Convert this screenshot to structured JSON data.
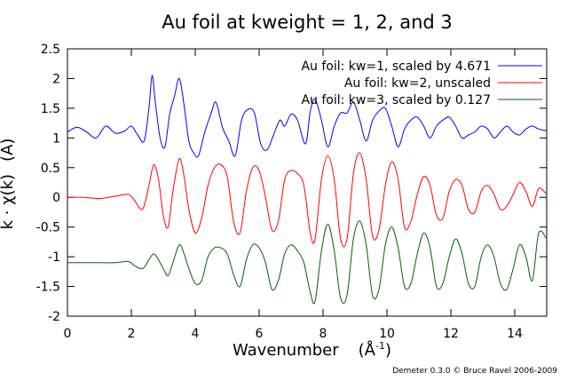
{
  "chart_data": {
    "type": "line",
    "title": "Au foil at kweight = 1, 2, and 3",
    "xlabel": "Wavenumber",
    "xunit_base": "(Å",
    "xunit_exp": "-1",
    "xunit_close": ")",
    "ylabel": "k · χ(k)",
    "yunit": "(A)",
    "xlim": [
      0,
      15
    ],
    "ylim": [
      -2,
      2.5
    ],
    "xticks": [
      0,
      2,
      4,
      6,
      8,
      10,
      12,
      14
    ],
    "yticks": [
      -2,
      -1.5,
      -1,
      -0.5,
      0,
      0.5,
      1,
      1.5,
      2,
      2.5
    ],
    "xtick_labels": [
      "0",
      "2",
      "4",
      "6",
      "8",
      "10",
      "12",
      "14"
    ],
    "ytick_labels": [
      "-2",
      "-1.5",
      "-1",
      "-0.5",
      "0",
      "0.5",
      "1",
      "1.5",
      "2",
      "2.5"
    ],
    "legend_position": "top-right",
    "grid": false,
    "series": [
      {
        "name": "Au foil: kw=1, scaled by 4.671",
        "color": "#0000ff",
        "x": [
          0,
          0.3,
          0.6,
          0.9,
          1.2,
          1.5,
          1.8,
          2.0,
          2.2,
          2.4,
          2.55,
          2.65,
          2.75,
          2.9,
          3.05,
          3.2,
          3.35,
          3.5,
          3.65,
          3.8,
          3.95,
          4.1,
          4.3,
          4.5,
          4.65,
          4.85,
          5.05,
          5.25,
          5.45,
          5.65,
          5.85,
          6.05,
          6.25,
          6.45,
          6.65,
          6.8,
          7.0,
          7.2,
          7.45,
          7.6,
          7.75,
          7.95,
          8.15,
          8.35,
          8.55,
          8.75,
          8.95,
          9.15,
          9.35,
          9.55,
          9.75,
          9.95,
          10.15,
          10.35,
          10.55,
          10.75,
          10.95,
          11.15,
          11.35,
          11.55,
          11.75,
          11.95,
          12.15,
          12.35,
          12.55,
          12.75,
          12.95,
          13.15,
          13.35,
          13.55,
          13.75,
          13.95,
          14.15,
          14.35,
          14.55,
          14.75,
          15.0
        ],
        "y": [
          1.1,
          1.18,
          1.1,
          1.0,
          1.2,
          1.08,
          1.12,
          1.2,
          1.05,
          0.95,
          1.5,
          2.05,
          1.6,
          1.0,
          0.85,
          1.4,
          1.7,
          2.0,
          1.55,
          0.95,
          0.75,
          0.7,
          1.1,
          1.42,
          1.6,
          1.18,
          0.95,
          0.7,
          1.3,
          1.48,
          1.42,
          0.9,
          0.8,
          1.05,
          1.3,
          1.2,
          1.4,
          1.3,
          0.9,
          1.45,
          1.65,
          1.3,
          0.85,
          1.2,
          1.42,
          1.42,
          1.6,
          1.3,
          0.95,
          1.3,
          1.45,
          1.5,
          1.2,
          0.85,
          1.15,
          1.3,
          1.35,
          1.2,
          1.0,
          1.2,
          1.3,
          1.35,
          1.2,
          1.0,
          1.05,
          1.1,
          1.2,
          1.15,
          1.0,
          1.1,
          1.2,
          1.1,
          1.05,
          1.15,
          1.2,
          1.15,
          1.12
        ]
      },
      {
        "name": "Au foil: kw=2, unscaled",
        "color": "#ff0000",
        "x": [
          0,
          0.5,
          1.0,
          1.5,
          1.9,
          2.1,
          2.35,
          2.55,
          2.7,
          2.85,
          3.0,
          3.15,
          3.3,
          3.5,
          3.65,
          3.8,
          4.0,
          4.2,
          4.4,
          4.6,
          4.8,
          5.0,
          5.2,
          5.4,
          5.6,
          5.8,
          6.0,
          6.2,
          6.4,
          6.6,
          6.8,
          7.0,
          7.2,
          7.4,
          7.6,
          7.75,
          7.95,
          8.15,
          8.35,
          8.55,
          8.75,
          8.95,
          9.15,
          9.35,
          9.55,
          9.75,
          9.95,
          10.15,
          10.35,
          10.55,
          10.75,
          10.95,
          11.15,
          11.35,
          11.55,
          11.75,
          11.95,
          12.15,
          12.35,
          12.55,
          12.75,
          12.95,
          13.15,
          13.35,
          13.55,
          13.75,
          13.95,
          14.15,
          14.35,
          14.55,
          14.75,
          15.0
        ],
        "y": [
          0,
          0,
          -0.02,
          0.02,
          0.05,
          -0.05,
          -0.2,
          0.2,
          0.55,
          0.3,
          -0.3,
          -0.5,
          0.1,
          0.65,
          0.35,
          -0.2,
          -0.6,
          -0.35,
          0.2,
          0.5,
          0.55,
          0.35,
          -0.4,
          -0.6,
          0.1,
          0.5,
          0.45,
          0.0,
          -0.55,
          -0.4,
          0.3,
          0.45,
          0.4,
          0.2,
          -0.6,
          -0.7,
          0.3,
          0.7,
          0.3,
          -0.7,
          -0.7,
          0.4,
          0.75,
          0.3,
          -0.65,
          -0.55,
          0.2,
          0.6,
          0.3,
          -0.5,
          -0.4,
          0.05,
          0.35,
          0.2,
          -0.3,
          -0.35,
          0.1,
          0.3,
          0.2,
          -0.2,
          -0.25,
          0.1,
          0.2,
          0.05,
          -0.2,
          -0.15,
          0.05,
          0.25,
          0.1,
          -0.15,
          0.15,
          0.05
        ]
      },
      {
        "name": "Au foil: kw=3, scaled by 0.127",
        "color": "#006400",
        "x": [
          0,
          0.5,
          1.0,
          1.5,
          1.9,
          2.1,
          2.35,
          2.55,
          2.7,
          2.85,
          3.0,
          3.15,
          3.3,
          3.5,
          3.65,
          3.8,
          4.0,
          4.2,
          4.4,
          4.6,
          4.8,
          5.0,
          5.2,
          5.4,
          5.6,
          5.8,
          6.0,
          6.2,
          6.4,
          6.6,
          6.8,
          7.0,
          7.2,
          7.4,
          7.6,
          7.75,
          7.95,
          8.15,
          8.35,
          8.55,
          8.75,
          8.95,
          9.15,
          9.35,
          9.55,
          9.75,
          9.95,
          10.15,
          10.35,
          10.55,
          10.75,
          10.95,
          11.15,
          11.35,
          11.55,
          11.75,
          11.95,
          12.15,
          12.35,
          12.55,
          12.75,
          12.95,
          13.15,
          13.35,
          13.55,
          13.75,
          13.95,
          14.15,
          14.35,
          14.55,
          14.75,
          15.0
        ],
        "y": [
          -1.1,
          -1.1,
          -1.1,
          -1.1,
          -1.08,
          -1.15,
          -1.2,
          -1.05,
          -0.95,
          -1.05,
          -1.2,
          -1.32,
          -1.1,
          -0.8,
          -0.95,
          -1.2,
          -1.45,
          -1.4,
          -1.0,
          -0.85,
          -0.85,
          -0.95,
          -1.3,
          -1.5,
          -1.05,
          -0.8,
          -0.85,
          -1.1,
          -1.55,
          -1.4,
          -0.95,
          -0.8,
          -0.9,
          -1.1,
          -1.6,
          -1.75,
          -0.9,
          -0.45,
          -0.9,
          -1.7,
          -1.65,
          -0.7,
          -0.4,
          -0.8,
          -1.65,
          -1.55,
          -0.8,
          -0.5,
          -0.85,
          -1.5,
          -1.45,
          -0.95,
          -0.6,
          -0.85,
          -1.5,
          -1.45,
          -1.0,
          -0.7,
          -0.95,
          -1.45,
          -1.5,
          -1.0,
          -0.8,
          -1.0,
          -1.45,
          -1.55,
          -1.2,
          -0.8,
          -1.0,
          -1.4,
          -0.6,
          -0.7
        ]
      }
    ]
  },
  "footer": {
    "credit": "Demeter 0.3.0 © Bruce Ravel 2006-2009"
  }
}
